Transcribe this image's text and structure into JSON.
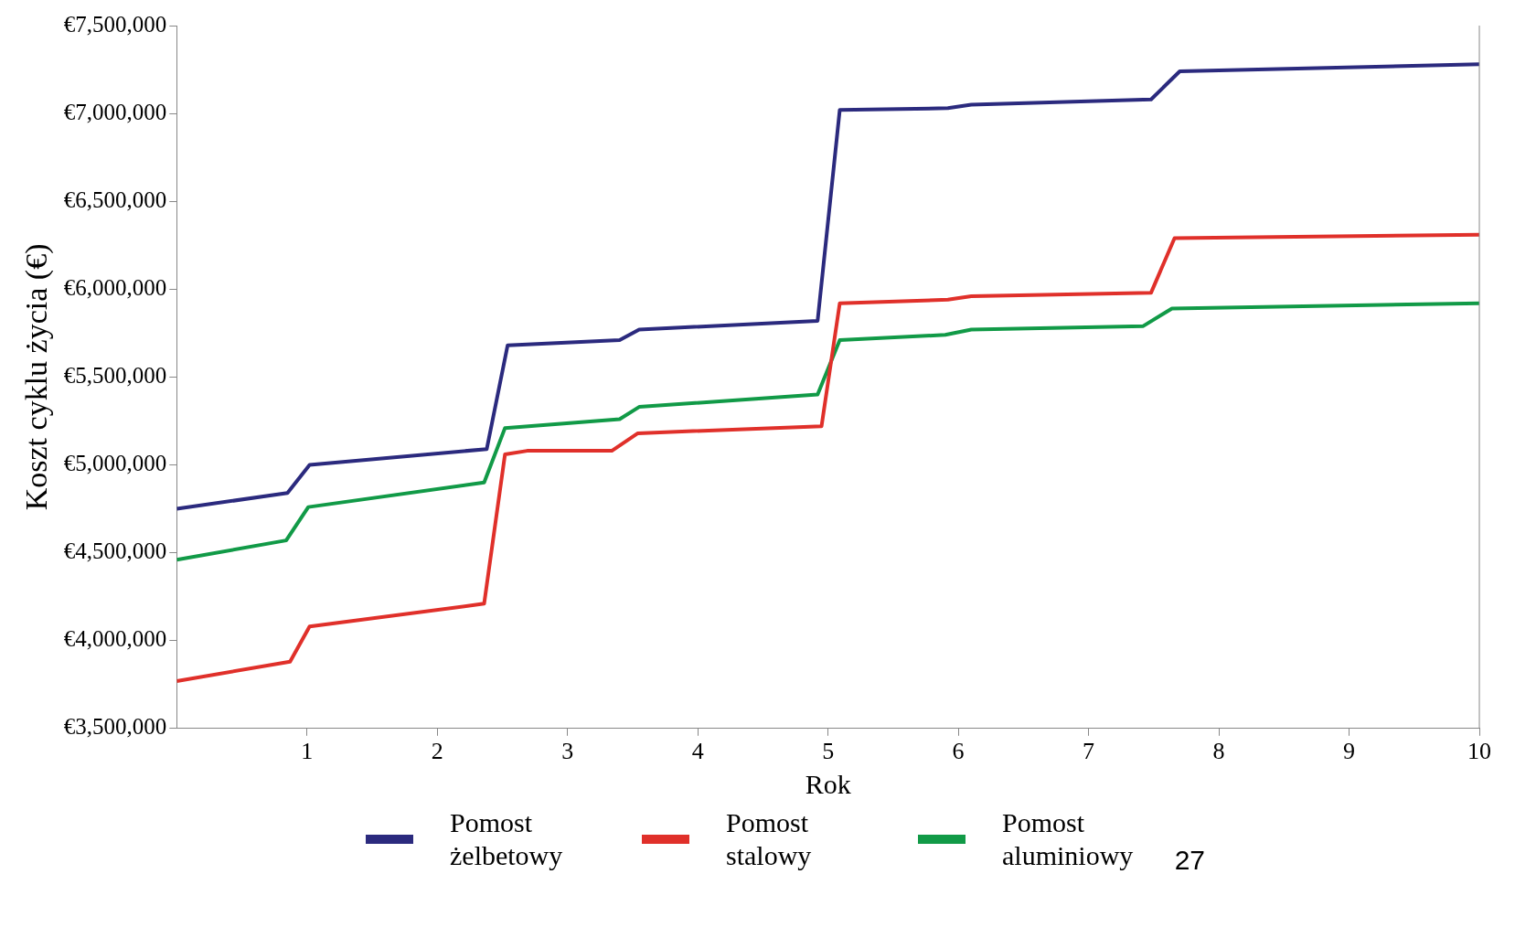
{
  "chart_data": {
    "type": "line",
    "xlabel": "Rok",
    "ylabel": "Koszt cyklu życia (€)",
    "xlim": [
      0,
      10
    ],
    "xticks": [
      1,
      2,
      3,
      4,
      5,
      6,
      7,
      8,
      9,
      10
    ],
    "ylim": [
      3500000,
      7500000
    ],
    "yticks": [
      {
        "value": 3500000,
        "label": "€3,500,000"
      },
      {
        "value": 4000000,
        "label": "€4,000,000"
      },
      {
        "value": 4500000,
        "label": "€4,500,000"
      },
      {
        "value": 5000000,
        "label": "€5,000,000"
      },
      {
        "value": 5500000,
        "label": "€5,500,000"
      },
      {
        "value": 6000000,
        "label": "€6,000,000"
      },
      {
        "value": 6500000,
        "label": "€6,500,000"
      },
      {
        "value": 7000000,
        "label": "€7,000,000"
      },
      {
        "value": 7500000,
        "label": "€7,500,000"
      }
    ],
    "grid": false,
    "legend": "bottom",
    "marker": "none",
    "line_style": "solid",
    "annotations": [
      "27"
    ],
    "series": [
      {
        "name": "Pomost żelbetowy",
        "color": "#2b2a7e",
        "x": [
          0,
          0.85,
          1.02,
          2.38,
          2.54,
          3.4,
          3.55,
          4.92,
          5.09,
          5.92,
          6.1,
          7.48,
          7.7,
          10
        ],
        "values": [
          4750000,
          4840000,
          5000000,
          5090000,
          5680000,
          5710000,
          5770000,
          5820000,
          7020000,
          7030000,
          7050000,
          7080000,
          7240000,
          7280000
        ]
      },
      {
        "name": "Pomost stalowy",
        "color": "#e0302a",
        "x": [
          0,
          0.87,
          1.02,
          2.36,
          2.52,
          2.69,
          3.34,
          3.54,
          4.95,
          5.09,
          5.92,
          6.1,
          7.48,
          7.66,
          10
        ],
        "values": [
          3770000,
          3880000,
          4080000,
          4210000,
          5060000,
          5080000,
          5080000,
          5180000,
          5220000,
          5920000,
          5940000,
          5960000,
          5980000,
          6290000,
          6310000
        ]
      },
      {
        "name": "Pomost aluminiowy",
        "color": "#119a47",
        "x": [
          0,
          0.84,
          1.01,
          2.36,
          2.52,
          3.4,
          3.55,
          4.92,
          5.09,
          5.9,
          6.1,
          7.42,
          7.64,
          10
        ],
        "values": [
          4460000,
          4570000,
          4760000,
          4900000,
          5210000,
          5260000,
          5330000,
          5400000,
          5710000,
          5740000,
          5770000,
          5790000,
          5890000,
          5920000
        ]
      }
    ]
  }
}
